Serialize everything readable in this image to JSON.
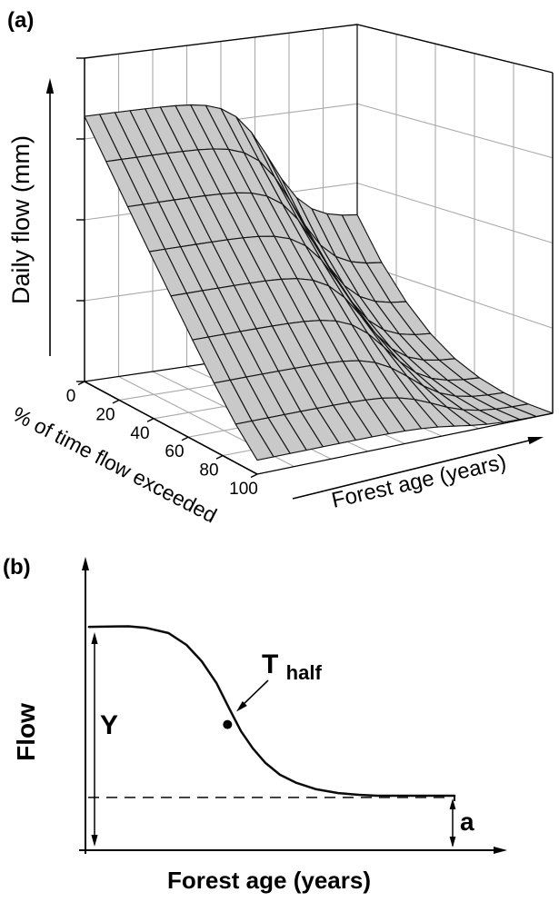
{
  "figure": {
    "background": "#ffffff",
    "ink": "#000000"
  },
  "panel_a": {
    "label": "(a)",
    "zlabel": "Daily flow (mm)",
    "ylabel": "% of time flow exceeded",
    "xlabel": "Forest age (years)",
    "y_tick_labels": [
      "0",
      "20",
      "40",
      "60",
      "80",
      "100"
    ],
    "z_tick_count": 5,
    "surface_fill": "#c9c9c9",
    "grid_color": "#a9a9a9"
  },
  "panel_b": {
    "label": "(b)",
    "ylabel": "Flow",
    "xlabel": "Forest age (years)",
    "annotation_initial_flow": "Y",
    "annotation_half_time_main": "T",
    "annotation_half_time_sub": "half",
    "annotation_asymptote": "a"
  },
  "chart_data": [
    {
      "type": "surface",
      "panel": "a",
      "xlabel": "Forest age (years)",
      "ylabel": "% of time flow exceeded",
      "zlabel": "Daily flow (mm)",
      "y_ticks": [
        0,
        20,
        40,
        60,
        80,
        100
      ],
      "z_axis_tick_marks": 5,
      "model": "flow(age,p) = base(p) + amplitude(p) * decay(age), normalized flow 0-1",
      "age_fractions": [
        0,
        0.056,
        0.111,
        0.167,
        0.222,
        0.278,
        0.333,
        0.389,
        0.444,
        0.5,
        0.556,
        0.611,
        0.667,
        0.722,
        0.778,
        0.833,
        0.889,
        0.944,
        1
      ],
      "decay_by_age": [
        1,
        0.9999,
        0.9998,
        0.9994,
        0.9986,
        0.9969,
        0.993,
        0.9845,
        0.9663,
        0.9284,
        0.854,
        0.7252,
        0.5427,
        0.347,
        0.19,
        0.0914,
        0.0383,
        0.0123,
        0
      ],
      "percent_rows": [
        0,
        12.5,
        25,
        37.5,
        50,
        62.5,
        75,
        87.5,
        100
      ],
      "base_by_row": [
        0.4,
        0.275,
        0.179,
        0.107,
        0.057,
        0.026,
        0.008,
        0.001,
        0
      ],
      "amplitude_by_row": [
        0.42,
        0.434,
        0.421,
        0.387,
        0.335,
        0.267,
        0.19,
        0.11,
        0.04
      ]
    },
    {
      "type": "line",
      "panel": "b",
      "xlabel": "Forest age (years)",
      "ylabel": "Flow",
      "curve_points": [
        [
          0.006,
          0.766
        ],
        [
          0.1,
          0.768
        ],
        [
          0.14,
          0.763
        ],
        [
          0.194,
          0.745
        ],
        [
          0.237,
          0.704
        ],
        [
          0.273,
          0.648
        ],
        [
          0.308,
          0.573
        ],
        [
          0.338,
          0.486
        ],
        [
          0.366,
          0.408
        ],
        [
          0.394,
          0.349
        ],
        [
          0.424,
          0.299
        ],
        [
          0.458,
          0.259
        ],
        [
          0.497,
          0.231
        ],
        [
          0.544,
          0.209
        ],
        [
          0.596,
          0.196
        ],
        [
          0.645,
          0.19
        ],
        [
          0.688,
          0.187
        ],
        [
          0.871,
          0.187
        ]
      ],
      "asymptote_level": 0.181,
      "initial_level": 0.768,
      "half_point": [
        0.334,
        0.431
      ],
      "annotations": [
        "Y",
        "Thalf",
        "a"
      ]
    }
  ]
}
